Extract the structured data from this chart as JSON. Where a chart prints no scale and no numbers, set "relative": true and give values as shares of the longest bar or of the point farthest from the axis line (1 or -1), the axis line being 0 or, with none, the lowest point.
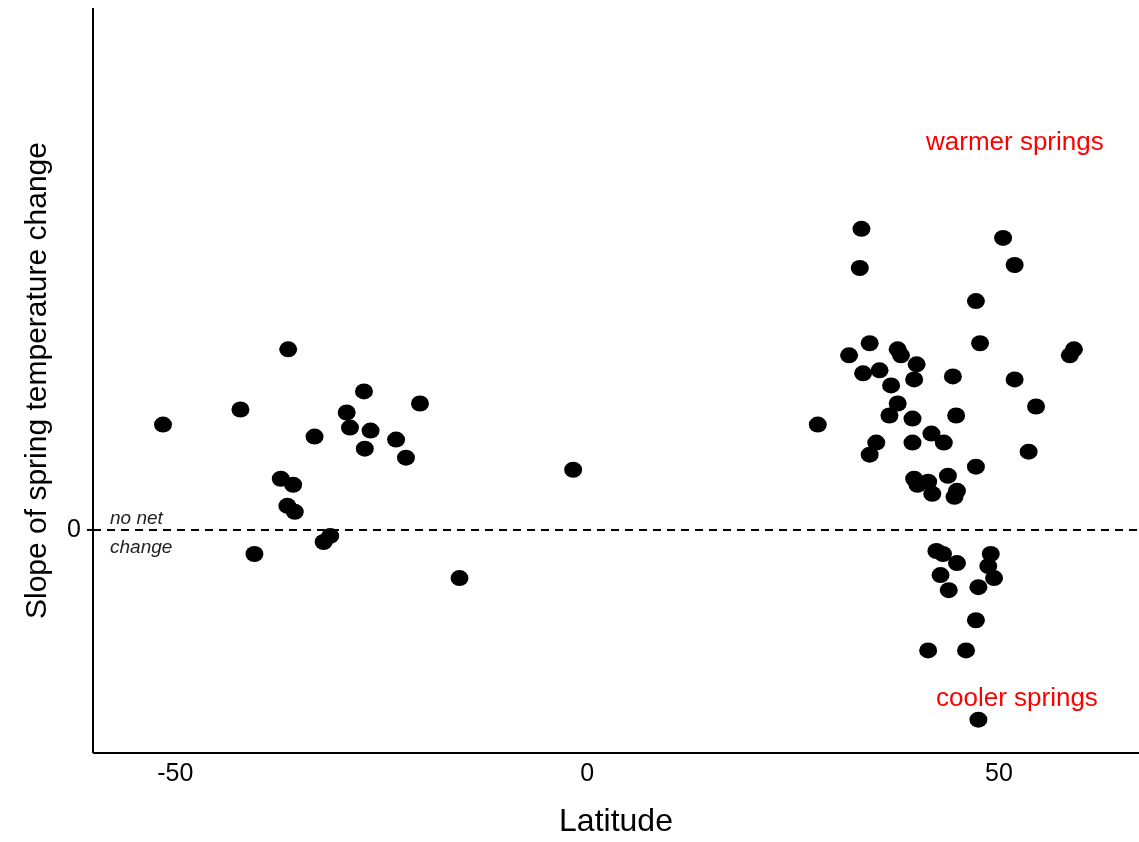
{
  "chart_data": {
    "type": "scatter",
    "xlabel": "Latitude",
    "ylabel": "Slope of spring temperature change",
    "relative": true,
    "xlim": [
      -60,
      67
    ],
    "xticks": [
      -50,
      0,
      50
    ],
    "marker": "circle",
    "series": [
      {
        "color": "#000000",
        "x": [
          -51.5,
          -42.1,
          -36.3,
          -33.1,
          -27.1,
          -29.2,
          -28.8,
          -26.3,
          -27.0,
          -20.3,
          -23.2,
          -22.0,
          -37.2,
          -35.7,
          -36.4,
          -35.5,
          -31.2,
          -32.0,
          -40.4,
          -15.5,
          -1.7,
          33.3,
          33.1,
          50.5,
          51.9,
          47.2,
          47.7,
          34.3,
          31.8,
          37.7,
          38.1,
          40.0,
          33.5,
          35.5,
          39.7,
          44.4,
          36.9,
          37.7,
          36.7,
          39.5,
          44.8,
          28.0,
          41.8,
          43.3,
          39.5,
          35.1,
          34.3,
          47.2,
          39.7,
          40.1,
          41.4,
          41.9,
          43.8,
          44.9,
          44.6,
          59.1,
          58.6,
          51.9,
          54.5,
          53.6,
          42.4,
          43.2,
          44.9,
          49.0,
          48.7,
          49.4,
          42.9,
          43.9,
          47.5,
          47.2,
          41.4,
          46.0,
          47.5
        ],
        "values": [
          0.35,
          0.4,
          0.6,
          0.31,
          0.46,
          0.39,
          0.34,
          0.33,
          0.27,
          0.42,
          0.3,
          0.24,
          0.17,
          0.15,
          0.08,
          0.06,
          -0.02,
          -0.04,
          -0.08,
          -0.16,
          0.2,
          1.0,
          0.87,
          0.97,
          0.88,
          0.76,
          0.62,
          0.62,
          0.58,
          0.6,
          0.58,
          0.55,
          0.52,
          0.53,
          0.5,
          0.51,
          0.48,
          0.42,
          0.38,
          0.37,
          0.38,
          0.35,
          0.32,
          0.29,
          0.29,
          0.29,
          0.25,
          0.21,
          0.17,
          0.15,
          0.16,
          0.12,
          0.18,
          0.13,
          0.11,
          0.6,
          0.58,
          0.5,
          0.41,
          0.26,
          -0.07,
          -0.08,
          -0.11,
          -0.08,
          -0.12,
          -0.16,
          -0.15,
          -0.2,
          -0.19,
          -0.3,
          -0.4,
          -0.4,
          -0.63
        ]
      }
    ],
    "ref_lines": [
      {
        "axis": "y",
        "value": 0,
        "label": "no net change",
        "line_style": "dashed",
        "color": "#000000"
      }
    ],
    "annotations": [
      "warmer springs",
      "cooler springs",
      "0"
    ]
  }
}
